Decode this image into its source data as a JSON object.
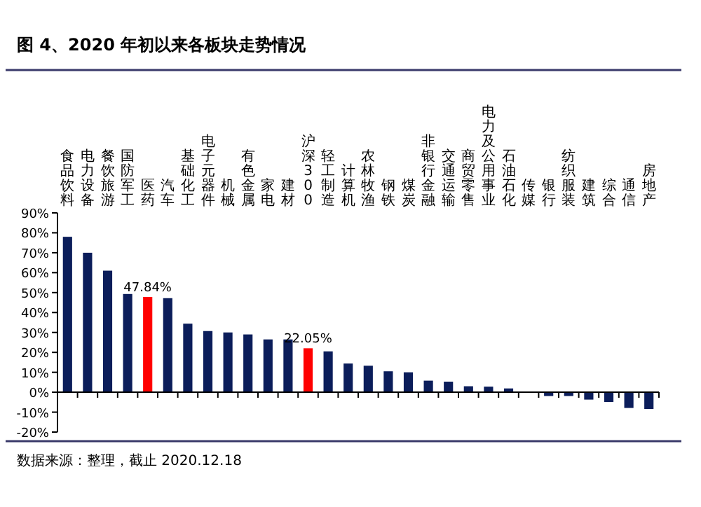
{
  "chart_data": {
    "type": "bar",
    "title": "图 4、2020 年初以来各板块走势情况",
    "categories": [
      "食品饮料",
      "电力设备",
      "餐饮旅游",
      "国防军工",
      "医药",
      "汽车",
      "基础化工",
      "电子元器件",
      "机械",
      "有色金属",
      "家电",
      "建材",
      "沪深300",
      "轻工制造",
      "计算机",
      "农林牧渔",
      "钢铁",
      "煤炭",
      "非银行金融",
      "交通运输",
      "商贸零售",
      "电力及公用事业",
      "石油石化",
      "传媒",
      "银行",
      "纺织服装",
      "建筑",
      "综合",
      "通信",
      "房地产"
    ],
    "values": [
      78,
      70,
      61,
      49.3,
      47.84,
      47.2,
      34.4,
      30.7,
      30,
      29,
      26.5,
      26.5,
      22.05,
      20.5,
      14.4,
      13.3,
      10.5,
      10,
      5.8,
      5.3,
      3,
      2.8,
      1.9,
      0.3,
      -1.9,
      -1.9,
      -3.7,
      -4.9,
      -7.9,
      -8.4
    ],
    "colors": [
      "#0b1d5a",
      "#0b1d5a",
      "#0b1d5a",
      "#0b1d5a",
      "#ff0000",
      "#0b1d5a",
      "#0b1d5a",
      "#0b1d5a",
      "#0b1d5a",
      "#0b1d5a",
      "#0b1d5a",
      "#0b1d5a",
      "#ff0000",
      "#0b1d5a",
      "#0b1d5a",
      "#0b1d5a",
      "#0b1d5a",
      "#0b1d5a",
      "#0b1d5a",
      "#0b1d5a",
      "#0b1d5a",
      "#0b1d5a",
      "#0b1d5a",
      "#0b1d5a",
      "#0b1d5a",
      "#0b1d5a",
      "#0b1d5a",
      "#0b1d5a",
      "#0b1d5a",
      "#0b1d5a"
    ],
    "value_labels": [
      null,
      null,
      null,
      null,
      "47.84%",
      null,
      null,
      null,
      null,
      null,
      null,
      null,
      "22.05%",
      null,
      null,
      null,
      null,
      null,
      null,
      null,
      null,
      null,
      null,
      null,
      null,
      null,
      null,
      null,
      null,
      null
    ],
    "ylim": [
      -20,
      90
    ],
    "yticks": [
      {
        "value": -20,
        "label": "-20%"
      },
      {
        "value": -10,
        "label": "-10%"
      },
      {
        "value": 0,
        "label": "0%"
      },
      {
        "value": 10,
        "label": "10%"
      },
      {
        "value": 20,
        "label": "20%"
      },
      {
        "value": 30,
        "label": "30%"
      },
      {
        "value": 40,
        "label": "40%"
      },
      {
        "value": 50,
        "label": "50%"
      },
      {
        "value": 60,
        "label": "60%"
      },
      {
        "value": 70,
        "label": "70%"
      },
      {
        "value": 80,
        "label": "80%"
      },
      {
        "value": 90,
        "label": "90%"
      }
    ],
    "annotations": [
      "数据来源：整理，截止 2020.12.18"
    ]
  }
}
